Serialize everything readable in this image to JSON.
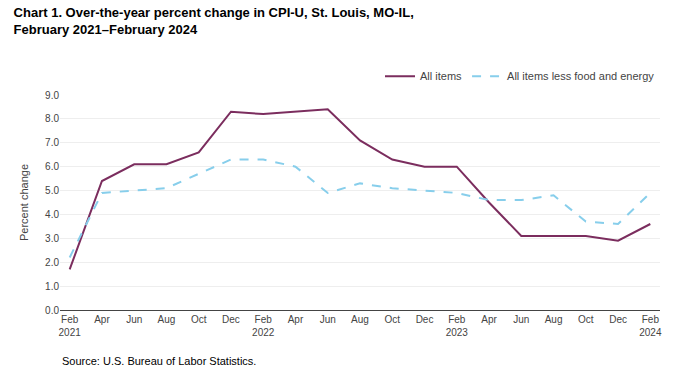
{
  "chart_data": {
    "type": "line",
    "title": "Chart 1. Over-the-year percent change in CPI-U, St. Louis, MO-IL,",
    "subtitle": "February 2021–February 2024",
    "ylabel": "Percent change",
    "annotations": [
      "Source: U.S. Bureau of Labor Statistics."
    ],
    "categories": [
      "Feb\n2021",
      "Apr",
      "Jun",
      "Aug",
      "Oct",
      "Dec",
      "Feb\n2022",
      "Apr",
      "Jun",
      "Aug",
      "Oct",
      "Dec",
      "Feb\n2023",
      "Apr",
      "Jun",
      "Aug",
      "Oct",
      "Dec",
      "Feb\n2024"
    ],
    "series": [
      {
        "name": "All items",
        "color": "#7B2D5E",
        "line_style": "solid",
        "values": [
          1.7,
          5.4,
          6.1,
          6.1,
          6.6,
          8.3,
          8.2,
          8.3,
          8.4,
          7.1,
          6.3,
          6.0,
          6.0,
          4.5,
          3.1,
          3.1,
          3.1,
          2.9,
          3.6
        ]
      },
      {
        "name": "All items less food and energy",
        "color": "#87CEEB",
        "line_style": "dashed",
        "values": [
          2.2,
          4.9,
          5.0,
          5.1,
          5.7,
          6.3,
          6.3,
          6.0,
          4.9,
          5.3,
          5.1,
          5.0,
          4.9,
          4.6,
          4.6,
          4.8,
          3.7,
          3.6,
          4.9
        ]
      }
    ],
    "ylim": [
      0.0,
      9.0
    ],
    "yticks": [
      {
        "value": 0,
        "label": "0.0"
      },
      {
        "value": 1,
        "label": "1.0"
      },
      {
        "value": 2,
        "label": "2.0"
      },
      {
        "value": 3,
        "label": "3.0"
      },
      {
        "value": 4,
        "label": "4.0"
      },
      {
        "value": 5,
        "label": "5.0"
      },
      {
        "value": 6,
        "label": "6.0"
      },
      {
        "value": 7,
        "label": "7.0"
      },
      {
        "value": 8,
        "label": "8.0"
      },
      {
        "value": 9,
        "label": "9.0"
      }
    ],
    "grid": true,
    "legend": "top"
  }
}
